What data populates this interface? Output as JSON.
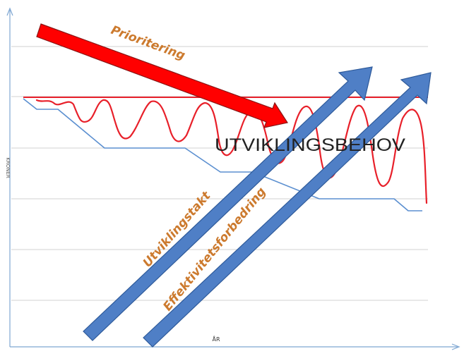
{
  "labels": {
    "prioritering": "Prioritering",
    "utviklingsbehov": "UTVIKLINGSBEHOV",
    "utviklingstakt": "Utviklingstakt",
    "effektivitetsforbedring": "Effektivitetsforbedring"
  },
  "axes": {
    "y_label": "KRONER",
    "x_label": "ÅR"
  },
  "colors": {
    "gridline": "#d0d0d0",
    "axis": "#7ea6d2",
    "red": "#e8202a",
    "arrow_red": "#ff0000",
    "arrow_red_edge": "#8a1414",
    "arrow_blue": "#4f7fc6",
    "arrow_blue_edge": "#2e5a9a",
    "step_line": "#5b8fd0",
    "label_orange": "#cc7a2e",
    "text_dark": "#222222"
  }
}
